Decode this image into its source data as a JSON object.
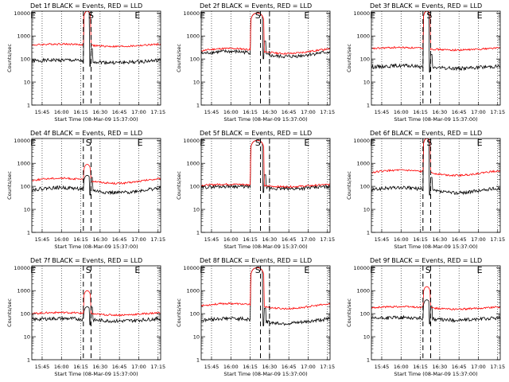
{
  "figure": {
    "panel_title_suffix": "BLACK = Events, RED = LLD",
    "xlabel": "Start Time (08-Mar-09 15:37:00)",
    "ylabel": "Counts/sec",
    "x_tick_labels": [
      "15:45",
      "16:00",
      "16:15",
      "16:30",
      "16:45",
      "17:00",
      "17:15"
    ],
    "y_tick_labels": [
      "1",
      "10",
      "100",
      "1000",
      "10000"
    ],
    "markers": [
      "E",
      "S",
      "E"
    ],
    "colors": {
      "events": "#000000",
      "lld": "#ff0000"
    }
  },
  "chart_data": [
    {
      "type": "line",
      "title": "Det 1f",
      "marker_times": [
        "15:38",
        "16:23",
        "16:59"
      ],
      "dashed_lines": [
        "16:17",
        "16:23"
      ],
      "series": [
        {
          "name": "BLACK = Events",
          "baseline": 80,
          "burst_peak": 12000,
          "burst": [
            "16:17",
            "16:23"
          ]
        },
        {
          "name": "RED = LLD",
          "baseline": 400,
          "burst_peak": 12000,
          "burst": [
            "16:17",
            "16:23"
          ]
        }
      ],
      "xlim": [
        "15:37",
        "17:17"
      ],
      "ylim": [
        1,
        12000
      ],
      "ylog": true
    },
    {
      "type": "line",
      "title": "Det 2f",
      "marker_times": [
        "15:38",
        "16:21",
        "16:59"
      ],
      "dashed_lines": [
        "16:23",
        "16:30"
      ],
      "series": [
        {
          "name": "BLACK = Events",
          "baseline": 170,
          "burst_peak": 10000,
          "burst": [
            "16:15",
            "16:26"
          ]
        },
        {
          "name": "RED = LLD",
          "baseline": 230,
          "burst_peak": 10000,
          "burst": [
            "16:15",
            "16:26"
          ]
        }
      ],
      "xlim": [
        "15:37",
        "17:17"
      ],
      "ylim": [
        1,
        12000
      ],
      "ylog": true
    },
    {
      "type": "line",
      "title": "Det 3f",
      "marker_times": [
        "15:38",
        "16:22",
        "17:01"
      ],
      "dashed_lines": [
        "16:17",
        "16:23"
      ],
      "series": [
        {
          "name": "BLACK = Events",
          "baseline": 45,
          "burst_peak": 12000,
          "burst": [
            "16:17",
            "16:23"
          ]
        },
        {
          "name": "RED = LLD",
          "baseline": 280,
          "burst_peak": 12000,
          "burst": [
            "16:17",
            "16:23"
          ]
        }
      ],
      "xlim": [
        "15:37",
        "17:17"
      ],
      "ylim": [
        1,
        12000
      ],
      "ylog": true
    },
    {
      "type": "line",
      "title": "Det 4f",
      "marker_times": [
        "15:38",
        "16:21",
        "17:01"
      ],
      "dashed_lines": [
        "16:17",
        "16:23"
      ],
      "series": [
        {
          "name": "BLACK = Events",
          "baseline": 70,
          "burst_peak": 300,
          "burst": [
            "16:17",
            "16:23"
          ]
        },
        {
          "name": "RED = LLD",
          "baseline": 180,
          "burst_peak": 900,
          "burst": [
            "16:17",
            "16:23"
          ]
        }
      ],
      "xlim": [
        "15:37",
        "17:17"
      ],
      "ylim": [
        1,
        12000
      ],
      "ylog": true
    },
    {
      "type": "line",
      "title": "Det 5f",
      "marker_times": [
        "15:38",
        "16:21",
        "16:59"
      ],
      "dashed_lines": [
        "16:23",
        "16:30"
      ],
      "series": [
        {
          "name": "BLACK = Events",
          "baseline": 90,
          "burst_peak": 10000,
          "burst": [
            "16:15",
            "16:26"
          ]
        },
        {
          "name": "RED = LLD",
          "baseline": 110,
          "burst_peak": 10000,
          "burst": [
            "16:15",
            "16:26"
          ]
        }
      ],
      "xlim": [
        "15:37",
        "17:17"
      ],
      "ylim": [
        1,
        12000
      ],
      "ylog": true
    },
    {
      "type": "line",
      "title": "Det 6f",
      "marker_times": [
        "15:38",
        "16:22",
        "17:01"
      ],
      "dashed_lines": [
        "16:17",
        "16:23"
      ],
      "series": [
        {
          "name": "BLACK = Events",
          "baseline": 70,
          "burst_peak": 12000,
          "burst": [
            "16:17",
            "16:23"
          ]
        },
        {
          "name": "RED = LLD",
          "baseline": 400,
          "burst_peak": 12000,
          "burst": [
            "16:17",
            "16:23"
          ]
        }
      ],
      "xlim": [
        "15:37",
        "17:17"
      ],
      "ylim": [
        1,
        12000
      ],
      "ylog": true
    },
    {
      "type": "line",
      "title": "Det 7f",
      "marker_times": [
        "15:38",
        "16:21",
        "16:59"
      ],
      "dashed_lines": [
        "16:17",
        "16:23"
      ],
      "series": [
        {
          "name": "BLACK = Events",
          "baseline": 55,
          "burst_peak": 200,
          "burst": [
            "16:17",
            "16:23"
          ]
        },
        {
          "name": "RED = LLD",
          "baseline": 100,
          "burst_peak": 1000,
          "burst": [
            "16:17",
            "16:23"
          ]
        }
      ],
      "xlim": [
        "15:37",
        "17:17"
      ],
      "ylim": [
        1,
        12000
      ],
      "ylog": true
    },
    {
      "type": "line",
      "title": "Det 8f",
      "marker_times": [
        "15:38",
        "16:21",
        "16:59"
      ],
      "dashed_lines": [
        "16:23",
        "16:30"
      ],
      "series": [
        {
          "name": "BLACK = Events",
          "baseline": 50,
          "burst_peak": 10000,
          "burst": [
            "16:15",
            "16:26"
          ]
        },
        {
          "name": "RED = LLD",
          "baseline": 220,
          "burst_peak": 10000,
          "burst": [
            "16:15",
            "16:26"
          ]
        }
      ],
      "xlim": [
        "15:37",
        "17:17"
      ],
      "ylim": [
        1,
        12000
      ],
      "ylog": true
    },
    {
      "type": "line",
      "title": "Det 9f",
      "marker_times": [
        "15:38",
        "16:21",
        "17:01"
      ],
      "dashed_lines": [
        "16:17",
        "16:23"
      ],
      "series": [
        {
          "name": "BLACK = Events",
          "baseline": 60,
          "burst_peak": 400,
          "burst": [
            "16:17",
            "16:23"
          ]
        },
        {
          "name": "RED = LLD",
          "baseline": 180,
          "burst_peak": 1500,
          "burst": [
            "16:17",
            "16:23"
          ]
        }
      ],
      "xlim": [
        "15:37",
        "17:17"
      ],
      "ylim": [
        1,
        12000
      ],
      "ylog": true
    }
  ]
}
